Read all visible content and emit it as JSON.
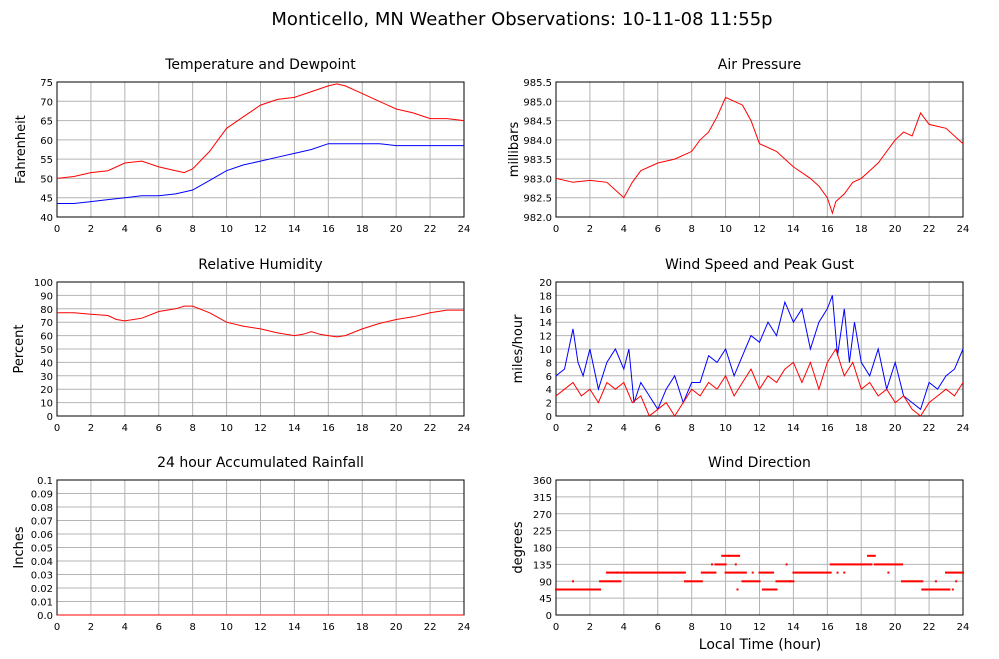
{
  "page_title": "Monticello, MN Weather Observations: 10-11-08 11:55p",
  "x_axis_label": "Local Time (hour)",
  "chart_data": [
    {
      "id": "temp",
      "type": "line",
      "title": "Temperature and Dewpoint",
      "ylabel": "Fahrenheit",
      "xlim": [
        0,
        24
      ],
      "ylim": [
        40,
        75
      ],
      "xticks": [
        0,
        2,
        4,
        6,
        8,
        10,
        12,
        14,
        16,
        18,
        20,
        22,
        24
      ],
      "yticks": [
        40,
        45,
        50,
        55,
        60,
        65,
        70,
        75
      ],
      "ytick_labels": [
        "40",
        "45",
        "50",
        "55",
        "60",
        "65",
        "70",
        "75"
      ],
      "grid": true,
      "series": [
        {
          "color": "#ff0000",
          "x": [
            0,
            1,
            2,
            3,
            4,
            5,
            6,
            7,
            7.5,
            8,
            9,
            10,
            11,
            12,
            13,
            14,
            15,
            16,
            16.5,
            17,
            18,
            19,
            20,
            21,
            22,
            23,
            24
          ],
          "y": [
            50,
            50.5,
            51.5,
            52,
            54,
            54.5,
            53,
            52,
            51.5,
            52.5,
            57,
            63,
            66,
            69,
            70.5,
            71,
            72.5,
            74,
            74.5,
            74,
            72,
            70,
            68,
            67,
            65.5,
            65.5,
            65
          ]
        },
        {
          "color": "#0000ff",
          "x": [
            0,
            1,
            2,
            3,
            4,
            5,
            6,
            7,
            8,
            9,
            10,
            11,
            12,
            13,
            14,
            15,
            16,
            17,
            18,
            19,
            20,
            21,
            22,
            23,
            24
          ],
          "y": [
            43.5,
            43.5,
            44,
            44.5,
            45,
            45.5,
            45.5,
            46,
            47,
            49.5,
            52,
            53.5,
            54.5,
            55.5,
            56.5,
            57.5,
            59,
            59,
            59,
            59,
            58.5,
            58.5,
            58.5,
            58.5,
            58.5
          ]
        }
      ]
    },
    {
      "id": "pressure",
      "type": "line",
      "title": "Air Pressure",
      "ylabel": "millibars",
      "xlim": [
        0,
        24
      ],
      "ylim": [
        982.0,
        985.5
      ],
      "xticks": [
        0,
        2,
        4,
        6,
        8,
        10,
        12,
        14,
        16,
        18,
        20,
        22,
        24
      ],
      "yticks": [
        982.0,
        982.5,
        983.0,
        983.5,
        984.0,
        984.5,
        985.0,
        985.5
      ],
      "ytick_labels": [
        "982.0",
        "982.5",
        "983.0",
        "983.5",
        "984.0",
        "984.5",
        "985.0",
        "985.5"
      ],
      "grid": true,
      "series": [
        {
          "color": "#ff0000",
          "x": [
            0,
            1,
            2,
            3,
            3.5,
            4,
            4.5,
            5,
            6,
            7,
            8,
            8.5,
            9,
            9.5,
            10,
            11,
            11.5,
            12,
            13,
            14,
            15,
            15.5,
            16,
            16.3,
            16.5,
            17,
            17.5,
            18,
            18.5,
            19,
            20,
            20.5,
            21,
            21.5,
            22,
            23,
            24
          ],
          "y": [
            983,
            982.9,
            982.95,
            982.9,
            982.7,
            982.5,
            982.9,
            983.2,
            983.4,
            983.5,
            983.7,
            984,
            984.2,
            984.6,
            985.1,
            984.9,
            984.5,
            983.9,
            983.7,
            983.3,
            983,
            982.8,
            982.5,
            982.1,
            982.4,
            982.6,
            982.9,
            983,
            983.2,
            983.4,
            984,
            984.2,
            984.1,
            984.7,
            984.4,
            984.3,
            983.9
          ]
        }
      ]
    },
    {
      "id": "humidity",
      "type": "line",
      "title": "Relative Humidity",
      "ylabel": "Percent",
      "xlim": [
        0,
        24
      ],
      "ylim": [
        0,
        100
      ],
      "xticks": [
        0,
        2,
        4,
        6,
        8,
        10,
        12,
        14,
        16,
        18,
        20,
        22,
        24
      ],
      "yticks": [
        0,
        10,
        20,
        30,
        40,
        50,
        60,
        70,
        80,
        90,
        100
      ],
      "ytick_labels": [
        "0",
        "10",
        "20",
        "30",
        "40",
        "50",
        "60",
        "70",
        "80",
        "90",
        "100"
      ],
      "grid": true,
      "series": [
        {
          "color": "#ff0000",
          "x": [
            0,
            1,
            2,
            3,
            3.5,
            4,
            5,
            6,
            7,
            7.5,
            8,
            9,
            10,
            11,
            12,
            13,
            14,
            14.5,
            15,
            15.5,
            16,
            16.5,
            17,
            18,
            19,
            20,
            21,
            22,
            23,
            24
          ],
          "y": [
            77,
            77,
            76,
            75,
            72,
            71,
            73,
            78,
            80,
            82,
            82,
            77,
            70,
            67,
            65,
            62,
            60,
            61,
            63,
            61,
            60,
            59,
            60,
            65,
            69,
            72,
            74,
            77,
            79,
            79
          ]
        }
      ]
    },
    {
      "id": "wind",
      "type": "line",
      "title": "Wind Speed and Peak Gust",
      "ylabel": "miles/hour",
      "xlim": [
        0,
        24
      ],
      "ylim": [
        0,
        20
      ],
      "xticks": [
        0,
        2,
        4,
        6,
        8,
        10,
        12,
        14,
        16,
        18,
        20,
        22,
        24
      ],
      "yticks": [
        0,
        2,
        4,
        6,
        8,
        10,
        12,
        14,
        16,
        18,
        20
      ],
      "ytick_labels": [
        "0",
        "2",
        "4",
        "6",
        "8",
        "10",
        "12",
        "14",
        "16",
        "18",
        "20"
      ],
      "grid": true,
      "series": [
        {
          "color": "#0000ff",
          "x": [
            0,
            0.5,
            1,
            1.3,
            1.6,
            2,
            2.5,
            3,
            3.5,
            4,
            4.3,
            4.6,
            5,
            5.5,
            6,
            6.5,
            7,
            7.5,
            8,
            8.5,
            9,
            9.5,
            10,
            10.5,
            11,
            11.5,
            12,
            12.5,
            13,
            13.5,
            14,
            14.5,
            15,
            15.5,
            16,
            16.3,
            16.6,
            17,
            17.3,
            17.6,
            18,
            18.5,
            19,
            19.5,
            20,
            20.5,
            21,
            21.5,
            22,
            22.5,
            23,
            23.5,
            24
          ],
          "y": [
            6,
            7,
            13,
            8,
            6,
            10,
            4,
            8,
            10,
            7,
            10,
            2,
            5,
            3,
            1,
            4,
            6,
            2,
            5,
            5,
            9,
            8,
            10,
            6,
            9,
            12,
            11,
            14,
            12,
            17,
            14,
            16,
            10,
            14,
            16,
            18,
            9,
            16,
            8,
            14,
            8,
            6,
            10,
            4,
            8,
            3,
            2,
            1,
            5,
            4,
            6,
            7,
            10
          ]
        },
        {
          "color": "#ff0000",
          "x": [
            0,
            0.5,
            1,
            1.5,
            2,
            2.5,
            3,
            3.5,
            4,
            4.5,
            5,
            5.5,
            6,
            6.5,
            7,
            7.5,
            8,
            8.5,
            9,
            9.5,
            10,
            10.5,
            11,
            11.5,
            12,
            12.5,
            13,
            13.5,
            14,
            14.5,
            15,
            15.5,
            16,
            16.5,
            17,
            17.5,
            18,
            18.5,
            19,
            19.5,
            20,
            20.5,
            21,
            21.5,
            22,
            22.5,
            23,
            23.5,
            24
          ],
          "y": [
            3,
            4,
            5,
            3,
            4,
            2,
            5,
            4,
            5,
            2,
            3,
            0,
            1,
            2,
            0,
            2,
            4,
            3,
            5,
            4,
            6,
            3,
            5,
            7,
            4,
            6,
            5,
            7,
            8,
            5,
            8,
            4,
            8,
            10,
            6,
            8,
            4,
            5,
            3,
            4,
            2,
            3,
            1,
            0,
            2,
            3,
            4,
            3,
            5
          ]
        }
      ]
    },
    {
      "id": "rain",
      "type": "line",
      "title": "24 hour Accumulated Rainfall",
      "ylabel": "Inches",
      "xlim": [
        0,
        24
      ],
      "ylim": [
        0,
        0.1
      ],
      "xticks": [
        0,
        2,
        4,
        6,
        8,
        10,
        12,
        14,
        16,
        18,
        20,
        22,
        24
      ],
      "yticks": [
        0,
        0.01,
        0.02,
        0.03,
        0.04,
        0.05,
        0.06,
        0.07,
        0.08,
        0.09,
        0.1
      ],
      "ytick_labels": [
        "0.0",
        "0.01",
        "0.02",
        "0.03",
        "0.04",
        "0.05",
        "0.06",
        "0.07",
        "0.08",
        "0.09",
        "0.1"
      ],
      "grid": true,
      "series": [
        {
          "color": "#ff0000",
          "x": [
            0,
            24
          ],
          "y": [
            0,
            0
          ]
        }
      ]
    },
    {
      "id": "direction",
      "type": "scatter",
      "title": "Wind Direction",
      "ylabel": "degrees",
      "xlim": [
        0,
        24
      ],
      "ylim": [
        0,
        360
      ],
      "xticks": [
        0,
        2,
        4,
        6,
        8,
        10,
        12,
        14,
        16,
        18,
        20,
        22,
        24
      ],
      "yticks": [
        0,
        45,
        90,
        135,
        180,
        225,
        270,
        315,
        360
      ],
      "ytick_labels": [
        "0",
        "45",
        "90",
        "135",
        "180",
        "225",
        "270",
        "315",
        "360"
      ],
      "grid": true,
      "series": [
        {
          "color": "#ff0000",
          "segments": [
            {
              "x0": 0,
              "x1": 2.6,
              "y": 68
            },
            {
              "x0": 2.6,
              "x1": 3.8,
              "y": 90
            },
            {
              "x0": 3.0,
              "x1": 4.2,
              "y": 113
            },
            {
              "x0": 4.2,
              "x1": 7.6,
              "y": 113
            },
            {
              "x0": 7.6,
              "x1": 8.6,
              "y": 90
            },
            {
              "x0": 8.6,
              "x1": 9.4,
              "y": 113
            },
            {
              "x0": 9.4,
              "x1": 10.0,
              "y": 135
            },
            {
              "x0": 9.8,
              "x1": 10.2,
              "y": 158
            },
            {
              "x0": 10.2,
              "x1": 10.8,
              "y": 158
            },
            {
              "x0": 10.0,
              "x1": 11.2,
              "y": 113
            },
            {
              "x0": 11.0,
              "x1": 12.0,
              "y": 90
            },
            {
              "x0": 12.0,
              "x1": 12.8,
              "y": 113
            },
            {
              "x0": 12.2,
              "x1": 13.0,
              "y": 68
            },
            {
              "x0": 13.0,
              "x1": 14.0,
              "y": 90
            },
            {
              "x0": 14.0,
              "x1": 16.2,
              "y": 113
            },
            {
              "x0": 16.2,
              "x1": 18.6,
              "y": 135
            },
            {
              "x0": 18.4,
              "x1": 18.8,
              "y": 158
            },
            {
              "x0": 18.8,
              "x1": 20.4,
              "y": 135
            },
            {
              "x0": 20.4,
              "x1": 21.6,
              "y": 90
            },
            {
              "x0": 21.6,
              "x1": 23.2,
              "y": 68
            },
            {
              "x0": 23.0,
              "x1": 24.0,
              "y": 113
            }
          ],
          "points": [
            {
              "x": 1.0,
              "y": 90
            },
            {
              "x": 2.0,
              "y": 68
            },
            {
              "x": 3.6,
              "y": 113
            },
            {
              "x": 9.2,
              "y": 135
            },
            {
              "x": 10.6,
              "y": 135
            },
            {
              "x": 10.7,
              "y": 68
            },
            {
              "x": 11.6,
              "y": 113
            },
            {
              "x": 12.4,
              "y": 113
            },
            {
              "x": 13.6,
              "y": 135
            },
            {
              "x": 13.8,
              "y": 90
            },
            {
              "x": 16.6,
              "y": 113
            },
            {
              "x": 17.0,
              "y": 113
            },
            {
              "x": 19.6,
              "y": 113
            },
            {
              "x": 22.4,
              "y": 90
            },
            {
              "x": 23.4,
              "y": 68
            },
            {
              "x": 23.6,
              "y": 90
            }
          ]
        }
      ]
    }
  ]
}
